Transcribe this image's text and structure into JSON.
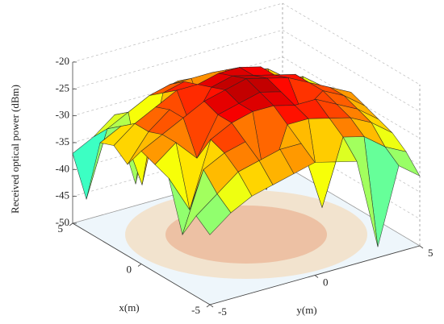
{
  "chart_data": {
    "type": "surface",
    "zlabel": "Received optical power (dBm)",
    "xlabel": "x(m)",
    "ylabel": "y(m)",
    "x": [
      -5,
      -4,
      -3,
      -2,
      -1,
      0,
      1,
      2,
      3,
      4,
      5
    ],
    "y": [
      -5,
      -4,
      -3,
      -2,
      -1,
      0,
      1,
      2,
      3,
      4,
      5
    ],
    "z": [
      [
        -37,
        -35,
        -40,
        -31,
        -30,
        -29,
        -33,
        -31,
        -32,
        -44,
        -37
      ],
      [
        -34,
        -32,
        -29,
        -38,
        -27,
        -27,
        -28,
        -28,
        -30,
        -32,
        -35
      ],
      [
        -32,
        -29,
        -27,
        -26,
        -31,
        -25,
        -25,
        -26,
        -42,
        -30,
        -32
      ],
      [
        -31,
        -28,
        -26,
        -24,
        -24,
        -23,
        -29,
        -24,
        -26,
        -28,
        -46
      ],
      [
        -30,
        -27,
        -36,
        -23,
        -23,
        -22,
        -23,
        -24,
        -25,
        -27,
        -30
      ],
      [
        -29,
        -27,
        -25,
        -23,
        -22,
        -21,
        -22,
        -23,
        -33,
        -27,
        -29
      ],
      [
        -30,
        -40,
        -25,
        -24,
        -23,
        -22,
        -23,
        -23,
        -25,
        -27,
        -30
      ],
      [
        -31,
        -28,
        -26,
        -24,
        -28,
        -23,
        -24,
        -24,
        -26,
        -28,
        -31
      ],
      [
        -48,
        -29,
        -27,
        -26,
        -25,
        -25,
        -25,
        -34,
        -27,
        -29,
        -32
      ],
      [
        -34,
        -32,
        -29,
        -28,
        -27,
        -27,
        -38,
        -28,
        -30,
        -32,
        -34
      ],
      [
        -37,
        -34,
        -32,
        -31,
        -30,
        -29,
        -30,
        -31,
        -45,
        -34,
        -38
      ]
    ],
    "xlim": [
      -5,
      5
    ],
    "ylim": [
      -5,
      5
    ],
    "zlim": [
      -50,
      -20
    ],
    "xticks": [
      -5,
      0,
      5
    ],
    "yticks": [
      -5,
      0,
      5
    ],
    "zticks": [
      -50,
      -45,
      -40,
      -35,
      -30,
      -25,
      -20
    ],
    "colormap": "jet",
    "grid": true
  }
}
